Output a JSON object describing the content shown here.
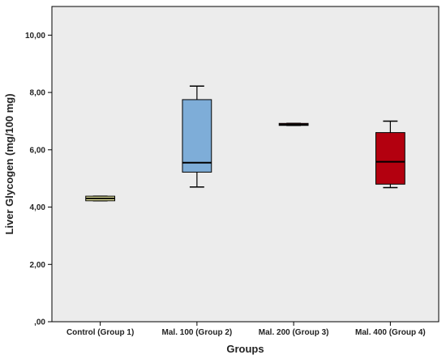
{
  "chart_data": {
    "type": "boxplot",
    "xlabel": "Groups",
    "ylabel": "Liver Glycogen (mg/100 mg)",
    "ylim": [
      0,
      11
    ],
    "yticks": [
      {
        "value": 0,
        "label": ",00"
      },
      {
        "value": 2,
        "label": "2,00"
      },
      {
        "value": 4,
        "label": "4,00"
      },
      {
        "value": 6,
        "label": "6,00"
      },
      {
        "value": 8,
        "label": "8,00"
      },
      {
        "value": 10,
        "label": "10,00"
      }
    ],
    "grid": false,
    "plot_background": "#ececec",
    "categories": [
      "Control (Group 1)",
      "Mal. 100 (Group 2)",
      "Mal. 200 (Group 3)",
      "Mal. 400 (Group 4)"
    ],
    "boxes": [
      {
        "min": 4.22,
        "q1": 4.22,
        "median": 4.3,
        "q3": 4.38,
        "max": 4.38,
        "color": "#e8e89e"
      },
      {
        "min": 4.7,
        "q1": 5.22,
        "median": 5.55,
        "q3": 7.75,
        "max": 8.22,
        "color": "#7eadd8"
      },
      {
        "min": 6.85,
        "q1": 6.85,
        "median": 6.88,
        "q3": 6.92,
        "max": 6.92,
        "color": "#b3000f"
      },
      {
        "min": 4.68,
        "q1": 4.8,
        "median": 5.58,
        "q3": 6.6,
        "max": 7.0,
        "color": "#b3000f"
      }
    ]
  }
}
